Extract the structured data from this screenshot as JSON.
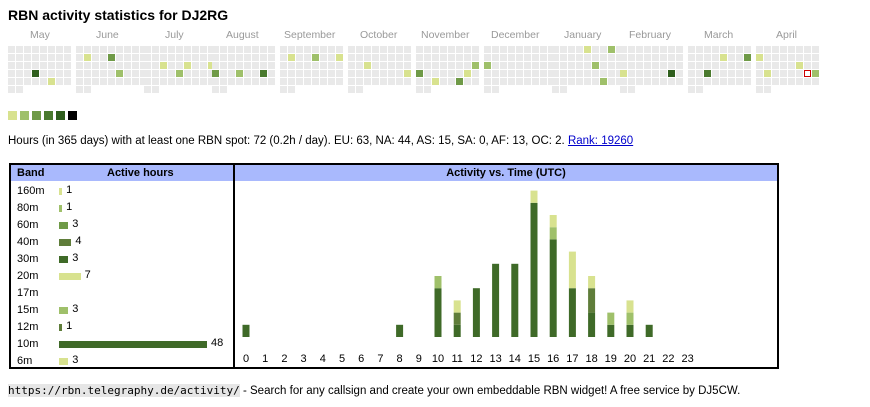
{
  "page": {
    "title": "RBN activity statistics for DJ2RG"
  },
  "calendar": {
    "months": [
      "May",
      "June",
      "July",
      "August",
      "September",
      "October",
      "November",
      "December",
      "January",
      "February",
      "March",
      "April"
    ],
    "colors": [
      "#d8e28f",
      "#9fc06a",
      "#6f9a47",
      "#4a7a2e",
      "#2f5e1d",
      "#000000"
    ],
    "empty_color": "#e9e9e9"
  },
  "summary": {
    "text": "Hours (in 365 days) with at least one RBN spot: 72 (0.2h / day). EU: 63, NA: 44, AS: 15, SA: 0, AF: 13, OC: 2. ",
    "rank_link": "Rank: 19260"
  },
  "bands": {
    "header_band": "Band",
    "header_hours": "Active hours",
    "rows": [
      {
        "band": "160m",
        "hours": 1,
        "color": "#d8e28f"
      },
      {
        "band": "80m",
        "hours": 1,
        "color": "#9fc06a"
      },
      {
        "band": "60m",
        "hours": 3,
        "color": "#6f9a47"
      },
      {
        "band": "40m",
        "hours": 4,
        "color": "#5f7d3a"
      },
      {
        "band": "30m",
        "hours": 3,
        "color": "#3f6a28"
      },
      {
        "band": "20m",
        "hours": 7,
        "color": "#d8e28f"
      },
      {
        "band": "17m",
        "hours": null,
        "color": "#9fc06a"
      },
      {
        "band": "15m",
        "hours": 3,
        "color": "#9fc06a"
      },
      {
        "band": "12m",
        "hours": 1,
        "color": "#5f7d3a"
      },
      {
        "band": "10m",
        "hours": 48,
        "color": "#3f6a28"
      },
      {
        "band": "6m",
        "hours": 3,
        "color": "#d8e28f"
      }
    ]
  },
  "activity": {
    "title": "Activity vs. Time (UTC)",
    "chart_data": {
      "type": "bar",
      "categories": [
        "0",
        "1",
        "2",
        "3",
        "4",
        "5",
        "6",
        "7",
        "8",
        "9",
        "10",
        "11",
        "12",
        "13",
        "14",
        "15",
        "16",
        "17",
        "18",
        "19",
        "20",
        "21",
        "22",
        "23"
      ],
      "series": [
        {
          "color": "#3f6a28",
          "values": [
            1,
            0,
            0,
            0,
            0,
            0,
            0,
            0,
            1,
            0,
            4,
            1,
            4,
            6,
            6,
            11,
            8,
            4,
            2,
            1,
            1,
            1,
            0,
            0
          ]
        },
        {
          "color": "#5f7d3a",
          "values": [
            0,
            0,
            0,
            0,
            0,
            0,
            0,
            0,
            0,
            0,
            0,
            1,
            0,
            0,
            0,
            0,
            0,
            0,
            2,
            0,
            0,
            0,
            0,
            0
          ]
        },
        {
          "color": "#9fc06a",
          "values": [
            0,
            0,
            0,
            0,
            0,
            0,
            0,
            0,
            0,
            0,
            1,
            0,
            0,
            0,
            0,
            0,
            1,
            0,
            0,
            1,
            1,
            0,
            0,
            0
          ]
        },
        {
          "color": "#d8e28f",
          "values": [
            0,
            0,
            0,
            0,
            0,
            0,
            0,
            0,
            0,
            0,
            0,
            1,
            0,
            0,
            0,
            1,
            1,
            3,
            1,
            0,
            1,
            0,
            0,
            0
          ]
        }
      ]
    }
  },
  "footer": {
    "url": "https://rbn.telegraphy.de/activity/",
    "text": " - Search for any callsign and create your own embeddable RBN widget! A free service by DJ5CW."
  }
}
